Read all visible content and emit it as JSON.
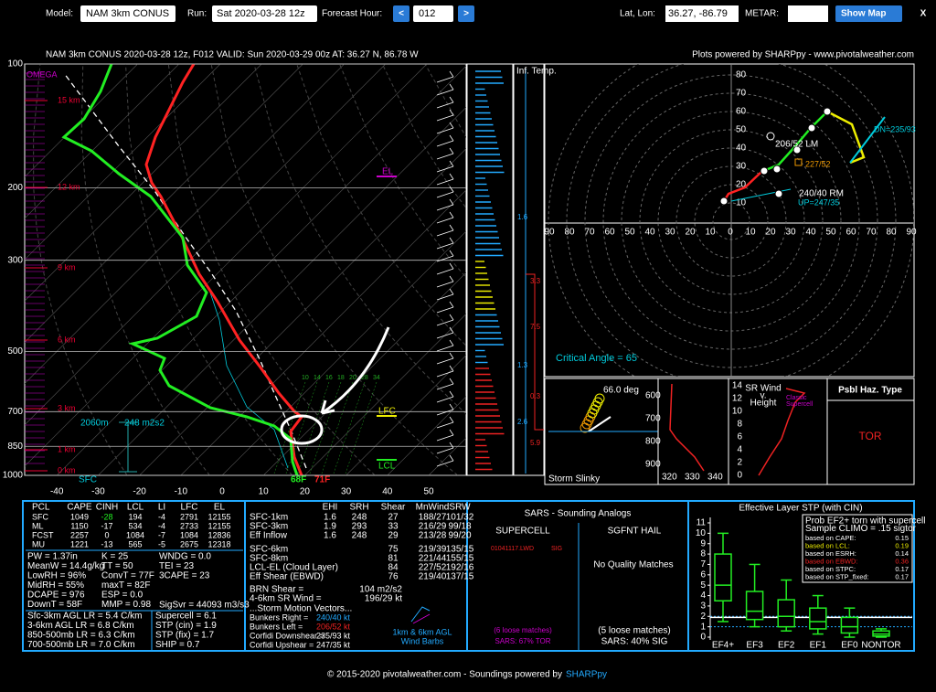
{
  "header": {
    "model_label": "Model:",
    "model": "NAM 3km CONUS",
    "run_label": "Run:",
    "run": "Sat 2020-03-28 12z",
    "hour_label": "Forecast Hour:",
    "prev": "<",
    "hour": "012",
    "next": ">",
    "latlon_label": "Lat, Lon:",
    "latlon": "36.27, -86.79",
    "metar_label": "METAR:",
    "show_map": "Show Map",
    "close": "X"
  },
  "plot": {
    "title": "NAM 3km CONUS 2020-03-28 12z, F012    VALID: Sun 2020-03-29 00z    AT: 36.27 N, 86.78 W",
    "credit": "Plots powered by SHARPpy - www.pivotalweather.com"
  },
  "skewt": {
    "pressures": [
      100,
      200,
      300,
      500,
      700,
      850,
      1000
    ],
    "temps": [
      -40,
      -30,
      -20,
      -10,
      0,
      10,
      20,
      30,
      40,
      50
    ],
    "heights": [
      "15 km",
      "12 km",
      "9 km",
      "6 km",
      "3 km",
      "1 km",
      "0 km"
    ],
    "omega": "OMEGA",
    "el": "EL",
    "lfc": "LFC",
    "lcl": "LCL",
    "sfc": "SFC",
    "eff_depth": "2060m",
    "eff_srh": "248 m2s2",
    "sfc_td": "68F",
    "sfc_t": "71F",
    "inf_temp": "Inf. Temp.",
    "theta_labels": [
      "10",
      "14",
      "16",
      "18",
      "20",
      "28",
      "34"
    ],
    "inf_cold": [
      "1.6",
      "1.3",
      "2.6"
    ],
    "inf_warm": [
      "3.3",
      "7.5",
      "0.3",
      "5.9"
    ]
  },
  "hodo": {
    "rings": [
      "10",
      "20",
      "30",
      "40",
      "50",
      "60",
      "70",
      "80"
    ],
    "axis": [
      "90",
      "80",
      "70",
      "60",
      "50",
      "40",
      "30",
      "20",
      "10",
      "0",
      "10",
      "20",
      "30",
      "40",
      "50",
      "60",
      "70",
      "80",
      "90"
    ],
    "lm": "206/52 LM",
    "mean": "227/52",
    "rm": "240/40 RM",
    "up": "UP=247/35",
    "dn": "DN=235/93",
    "critical": "Critical Angle = 65"
  },
  "slinky": {
    "angle": "66.0 deg",
    "title": "Storm Slinky",
    "pressures": [
      "600",
      "700",
      "800",
      "900"
    ],
    "temps": [
      "320",
      "330",
      "340"
    ]
  },
  "srwind": {
    "title": [
      "SR Wind",
      "v.",
      "Height"
    ],
    "heights": [
      "0",
      "2",
      "4",
      "6",
      "8",
      "10",
      "12",
      "14"
    ],
    "classic": [
      "Classic",
      "Supercell"
    ]
  },
  "hazard": {
    "title": "Psbl Haz. Type",
    "type": "TOR"
  },
  "thermo": {
    "header": [
      "PCL",
      "CAPE",
      "CINH",
      "LCL",
      "LI",
      "LFC",
      "EL"
    ],
    "rows": [
      [
        "SFC",
        "1049",
        "-28",
        "194",
        "-4",
        "2791",
        "12155"
      ],
      [
        "ML",
        "1150",
        "-17",
        "534",
        "-4",
        "2733",
        "12155"
      ],
      [
        "FCST",
        "2257",
        "0",
        "1084",
        "-7",
        "1084",
        "12836"
      ],
      [
        "MU",
        "1221",
        "-13",
        "565",
        "-5",
        "2675",
        "12318"
      ]
    ],
    "col1": [
      "PW = 1.37in",
      "MeanW = 14.4g/kg",
      "LowRH = 96%",
      "MidRH = 55%",
      "DCAPE = 976",
      "DownT = 58F"
    ],
    "col2": [
      "K = 25",
      "TT = 50",
      "ConvT = 77F",
      "maxT = 82F",
      "ESP = 0.0",
      "MMP = 0.98"
    ],
    "col3": [
      "WNDG = 0.0",
      "TEI = 23",
      "3CAPE = 23"
    ],
    "sigsvr": "SigSvr = 44093 m3/s3",
    "lapse": [
      "Sfc-3km AGL LR = 5.4 C/km",
      "3-6km AGL LR = 6.8 C/km",
      "850-500mb LR = 6.3 C/km",
      "700-500mb LR = 7.0 C/km"
    ],
    "params": [
      "Supercell = 6.1",
      "STP (cin) = 1.9",
      "STP (fix) = 1.7",
      "SHIP = 0.7"
    ]
  },
  "kinematic": {
    "header": [
      "EHI",
      "SRH",
      "Shear",
      "MnWind",
      "SRW"
    ],
    "rows": [
      [
        "SFC-1km",
        "1.6",
        "248",
        "27",
        "188/27",
        "101/32"
      ],
      [
        "SFC-3km",
        "1.9",
        "293",
        "33",
        "216/29",
        "99/18"
      ],
      [
        "Eff Inflow",
        "1.6",
        "248",
        "29",
        "213/28",
        "99/20"
      ]
    ],
    "deep": [
      [
        "SFC-6km",
        "75",
        "219/39",
        "135/15"
      ],
      [
        "SFC-8km",
        "81",
        "221/44",
        "155/15"
      ],
      [
        "LCL-EL (Cloud Layer)",
        "84",
        "227/52",
        "192/16"
      ],
      [
        "Eff Shear (EBWD)",
        "76",
        "219/40",
        "137/15"
      ]
    ],
    "misc": [
      [
        "BRN Shear =",
        "104 m2/s2"
      ],
      [
        "4-6km SR Wind =",
        "196/29 kt"
      ]
    ],
    "smv_title": "...Storm Motion Vectors...",
    "smv": [
      [
        "Bunkers Right =",
        "240/40 kt"
      ],
      [
        "Bunkers Left =",
        "206/52 kt"
      ],
      [
        "Corfidi Downshear =",
        "235/93 kt"
      ],
      [
        "Corfidi Upshear =",
        "247/35 kt"
      ]
    ],
    "barbs": [
      "1km & 6km AGL",
      "Wind Barbs"
    ]
  },
  "sars": {
    "title": "SARS - Sounding Analogs",
    "supercell": "SUPERCELL",
    "hail": "SGFNT HAIL",
    "match": "01041117.LWD",
    "match_type": "SIG",
    "hail_none": "No Quality Matches",
    "sc_loose": "(6 loose matches)",
    "sc_pct": "SARS: 67% TOR",
    "hail_loose": "(5 loose matches)",
    "hail_pct": "SARS: 40% SIG"
  },
  "stp": {
    "title": "Effective Layer STP (with CIN)",
    "ylim": [
      0,
      11
    ],
    "yticks": [
      0,
      1,
      2,
      3,
      4,
      5,
      6,
      7,
      8,
      9,
      10,
      11
    ],
    "value": 1.9,
    "boxes": [
      {
        "name": "EF4+",
        "low": 1.5,
        "q1": 3.5,
        "median": 5,
        "q3": 8,
        "high": 10
      },
      {
        "name": "EF3",
        "low": 1,
        "q1": 1.7,
        "median": 2.5,
        "q3": 4.4,
        "high": 7
      },
      {
        "name": "EF2",
        "low": 0.6,
        "q1": 1,
        "median": 2,
        "q3": 3.6,
        "high": 5.5
      },
      {
        "name": "EF1",
        "low": 0.3,
        "q1": 0.8,
        "median": 1.5,
        "q3": 2.8,
        "high": 4
      },
      {
        "name": "EF0",
        "low": 0,
        "q1": 0.4,
        "median": 1,
        "q3": 1.9,
        "high": 2.8
      },
      {
        "name": "NONTOR",
        "low": 0,
        "q1": 0.1,
        "median": 0.3,
        "q3": 0.6,
        "high": 0.8
      }
    ],
    "legend_title": [
      "Prob EF2+ torn with supercell",
      "Sample CLIMO = .15 sigtor"
    ],
    "legend": [
      [
        "based on CAPE:",
        "0.15"
      ],
      [
        "based on LCL:",
        "0.19"
      ],
      [
        "based on ESRH:",
        "0.14"
      ],
      [
        "based on EBWD:",
        "0.36"
      ],
      [
        "based on STPC:",
        "0.17"
      ],
      [
        "based on STP_fixed:",
        "0.17"
      ]
    ]
  },
  "footer": {
    "text": "© 2015-2020 pivotalweather.com - Soundings powered by",
    "link": "SHARPpy"
  }
}
